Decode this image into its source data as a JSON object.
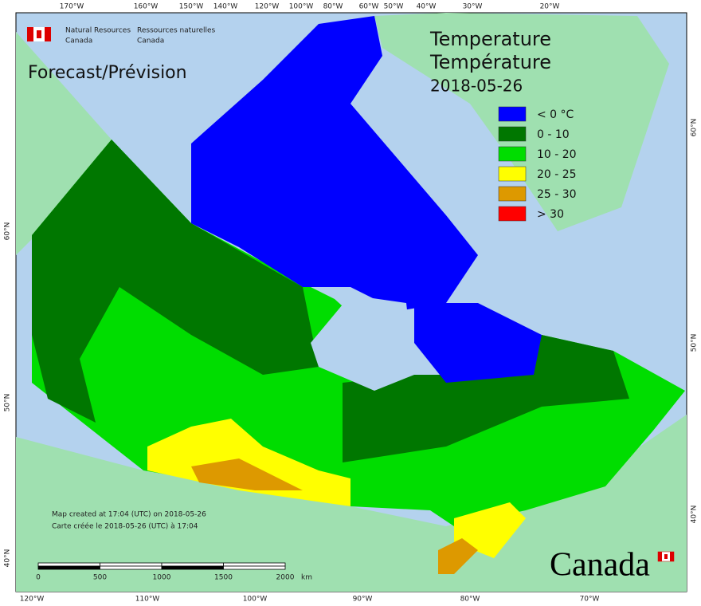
{
  "header": {
    "org_en_1": "Natural Resources",
    "org_en_2": "Canada",
    "org_fr_1": "Ressources naturelles",
    "org_fr_2": "Canada",
    "subtitle": "Forecast/Prévision",
    "title_en": "Temperature",
    "title_fr": "Température",
    "date": "2018-05-26"
  },
  "legend": [
    {
      "label": "< 0 °C",
      "color": "#0000ff"
    },
    {
      "label": "0 - 10",
      "color": "#007700"
    },
    {
      "label": "10 - 20",
      "color": "#00dd00"
    },
    {
      "label": "20 - 25",
      "color": "#ffff00"
    },
    {
      "label": "25 - 30",
      "color": "#dd9900"
    },
    {
      "label": "> 30",
      "color": "#ff0000"
    }
  ],
  "graticule": {
    "top": [
      "170°W",
      "160°W",
      "150°W",
      "140°W",
      "120°W",
      "100°W",
      "80°W",
      "60°W",
      "50°W",
      "40°W",
      "30°W",
      "20°W"
    ],
    "bottom": [
      "120°W",
      "110°W",
      "100°W",
      "90°W",
      "80°W",
      "70°W"
    ],
    "left": [
      "60°N",
      "50°N",
      "40°N"
    ],
    "right": [
      "60°N",
      "50°N",
      "40°N"
    ]
  },
  "notes": [
    "Map created at 17:04 (UTC) on 2018-05-26",
    "Carte créée le 2018-05-26 (UTC) à 17:04"
  ],
  "scale": {
    "ticks": [
      0,
      500,
      1000,
      1500,
      2000
    ],
    "unit": "km"
  },
  "wordmark": "Canada"
}
